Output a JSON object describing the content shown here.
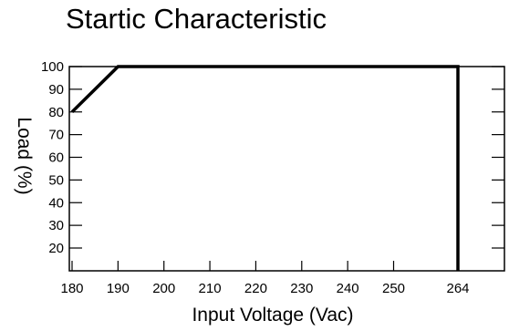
{
  "chart_data": {
    "type": "line",
    "title": "Startic Characteristic",
    "xlabel": "Input Voltage (Vac)",
    "ylabel": "Load (%)",
    "x_ticks": [
      180,
      190,
      200,
      210,
      220,
      230,
      240,
      250,
      264
    ],
    "y_ticks": [
      20,
      30,
      40,
      50,
      60,
      70,
      80,
      90,
      100
    ],
    "xlim": [
      180,
      264
    ],
    "ylim": [
      10,
      100
    ],
    "grid": false,
    "series": [
      {
        "x": [
          180,
          190,
          264,
          264
        ],
        "y": [
          80,
          100,
          100,
          10
        ],
        "color": "#000000"
      }
    ]
  }
}
